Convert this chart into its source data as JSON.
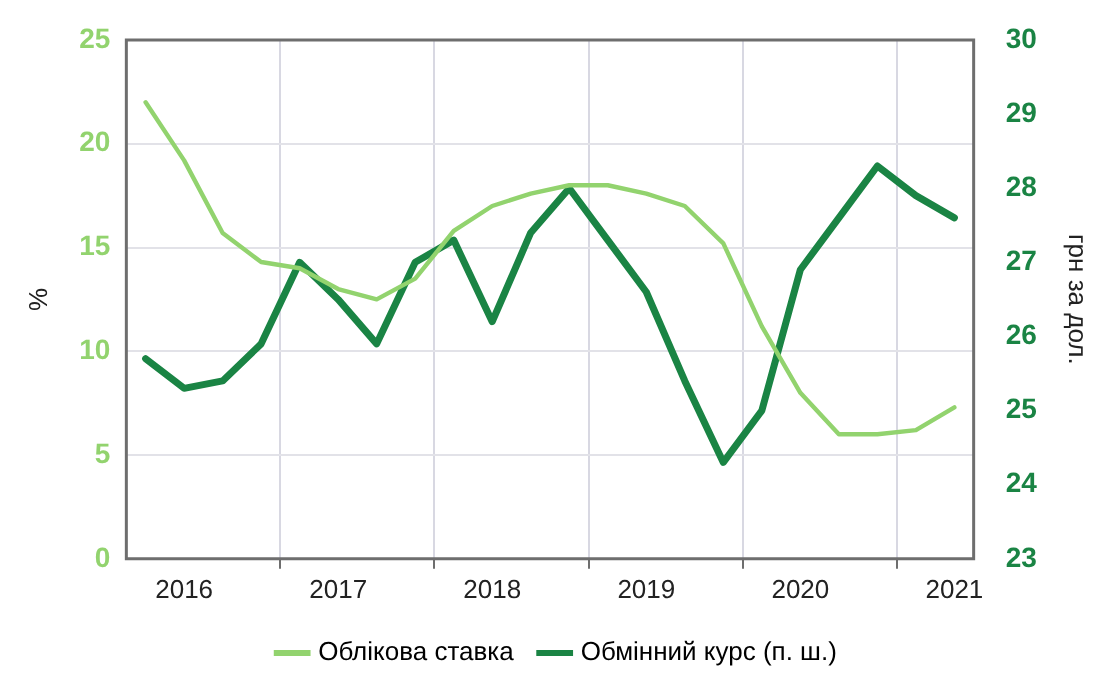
{
  "chart_data": {
    "type": "line",
    "ylabel": "%",
    "y2label": "грн за дол.",
    "categories": [
      null,
      "2016",
      null,
      null,
      null,
      "2017",
      null,
      null,
      null,
      "2018",
      null,
      null,
      null,
      "2019",
      null,
      null,
      null,
      "2020",
      null,
      null,
      null,
      "2021"
    ],
    "series": [
      {
        "name": "Облікова ставка",
        "color": "#92d36e",
        "values": [
          22.0,
          19.2,
          15.7,
          14.3,
          14.0,
          13.0,
          12.5,
          13.5,
          15.8,
          17.0,
          17.6,
          18.0,
          18.0,
          17.6,
          17.0,
          15.2,
          11.2,
          8.0,
          6.0,
          6.0,
          6.2,
          7.3
        ]
      },
      {
        "name": "Обмінний курс (п. ш.)",
        "color": "#1a8444",
        "axis": "y2",
        "values": [
          25.7,
          25.3,
          25.4,
          25.9,
          27.0,
          26.5,
          25.9,
          27.0,
          27.3,
          26.2,
          27.4,
          28.0,
          27.3,
          26.6,
          25.4,
          24.3,
          25.0,
          26.9,
          27.6,
          28.3,
          27.9,
          27.6
        ]
      }
    ],
    "ylim": [
      0,
      25
    ],
    "yticks": [
      0,
      5,
      10,
      15,
      20,
      25
    ],
    "y2lim": [
      23,
      30
    ],
    "y2ticks": [
      23,
      24,
      25,
      26,
      27,
      28,
      29,
      30
    ],
    "grid": true,
    "legend": "bottom",
    "marker": "none",
    "line_style": "solid"
  }
}
